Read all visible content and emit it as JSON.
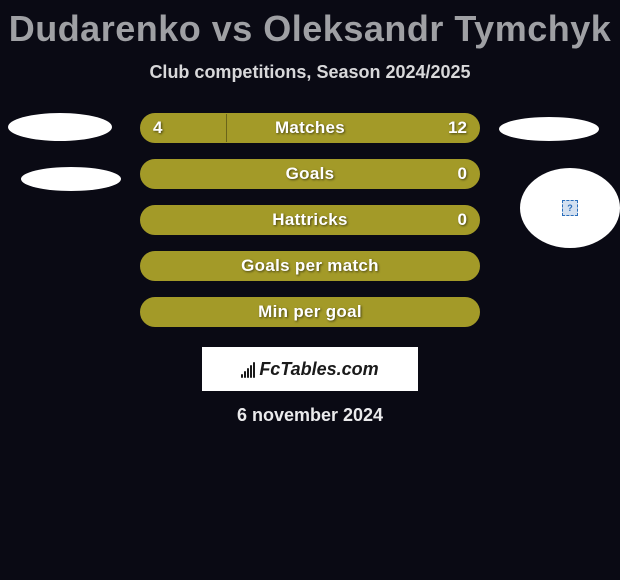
{
  "title": "Dudarenko vs Oleksandr Tymchyk",
  "subtitle": "Club competitions, Season 2024/2025",
  "footer_date": "6 november 2024",
  "footer_logo_text": "FcTables.com",
  "colors": {
    "background": "#0a0a14",
    "bar_border": "#a39a28",
    "bar_fill": "#a39a28",
    "bar_empty": "#0a0a14",
    "text_light": "#ffffff"
  },
  "bars": [
    {
      "label": "Matches",
      "left_value": "4",
      "right_value": "12",
      "left_pct": 25,
      "right_pct": 75,
      "show_values": true,
      "border_color": "#a39a28",
      "bg_color": "#a39a28",
      "empty_color": "#0a0a14"
    },
    {
      "label": "Goals",
      "left_value": "",
      "right_value": "0",
      "left_pct": 100,
      "right_pct": 0,
      "show_values": true,
      "border_color": "#a39a28",
      "bg_color": "#a39a28",
      "empty_color": "#0a0a14"
    },
    {
      "label": "Hattricks",
      "left_value": "",
      "right_value": "0",
      "left_pct": 100,
      "right_pct": 0,
      "show_values": true,
      "border_color": "#a39a28",
      "bg_color": "#a39a28",
      "empty_color": "#0a0a14"
    },
    {
      "label": "Goals per match",
      "left_value": "",
      "right_value": "",
      "left_pct": 100,
      "right_pct": 0,
      "show_values": false,
      "border_color": "#a39a28",
      "bg_color": "#a39a28",
      "empty_color": "#0a0a14"
    },
    {
      "label": "Min per goal",
      "left_value": "",
      "right_value": "",
      "left_pct": 100,
      "right_pct": 0,
      "show_values": false,
      "border_color": "#a39a28",
      "bg_color": "#a39a28",
      "empty_color": "#0a0a14"
    }
  ]
}
